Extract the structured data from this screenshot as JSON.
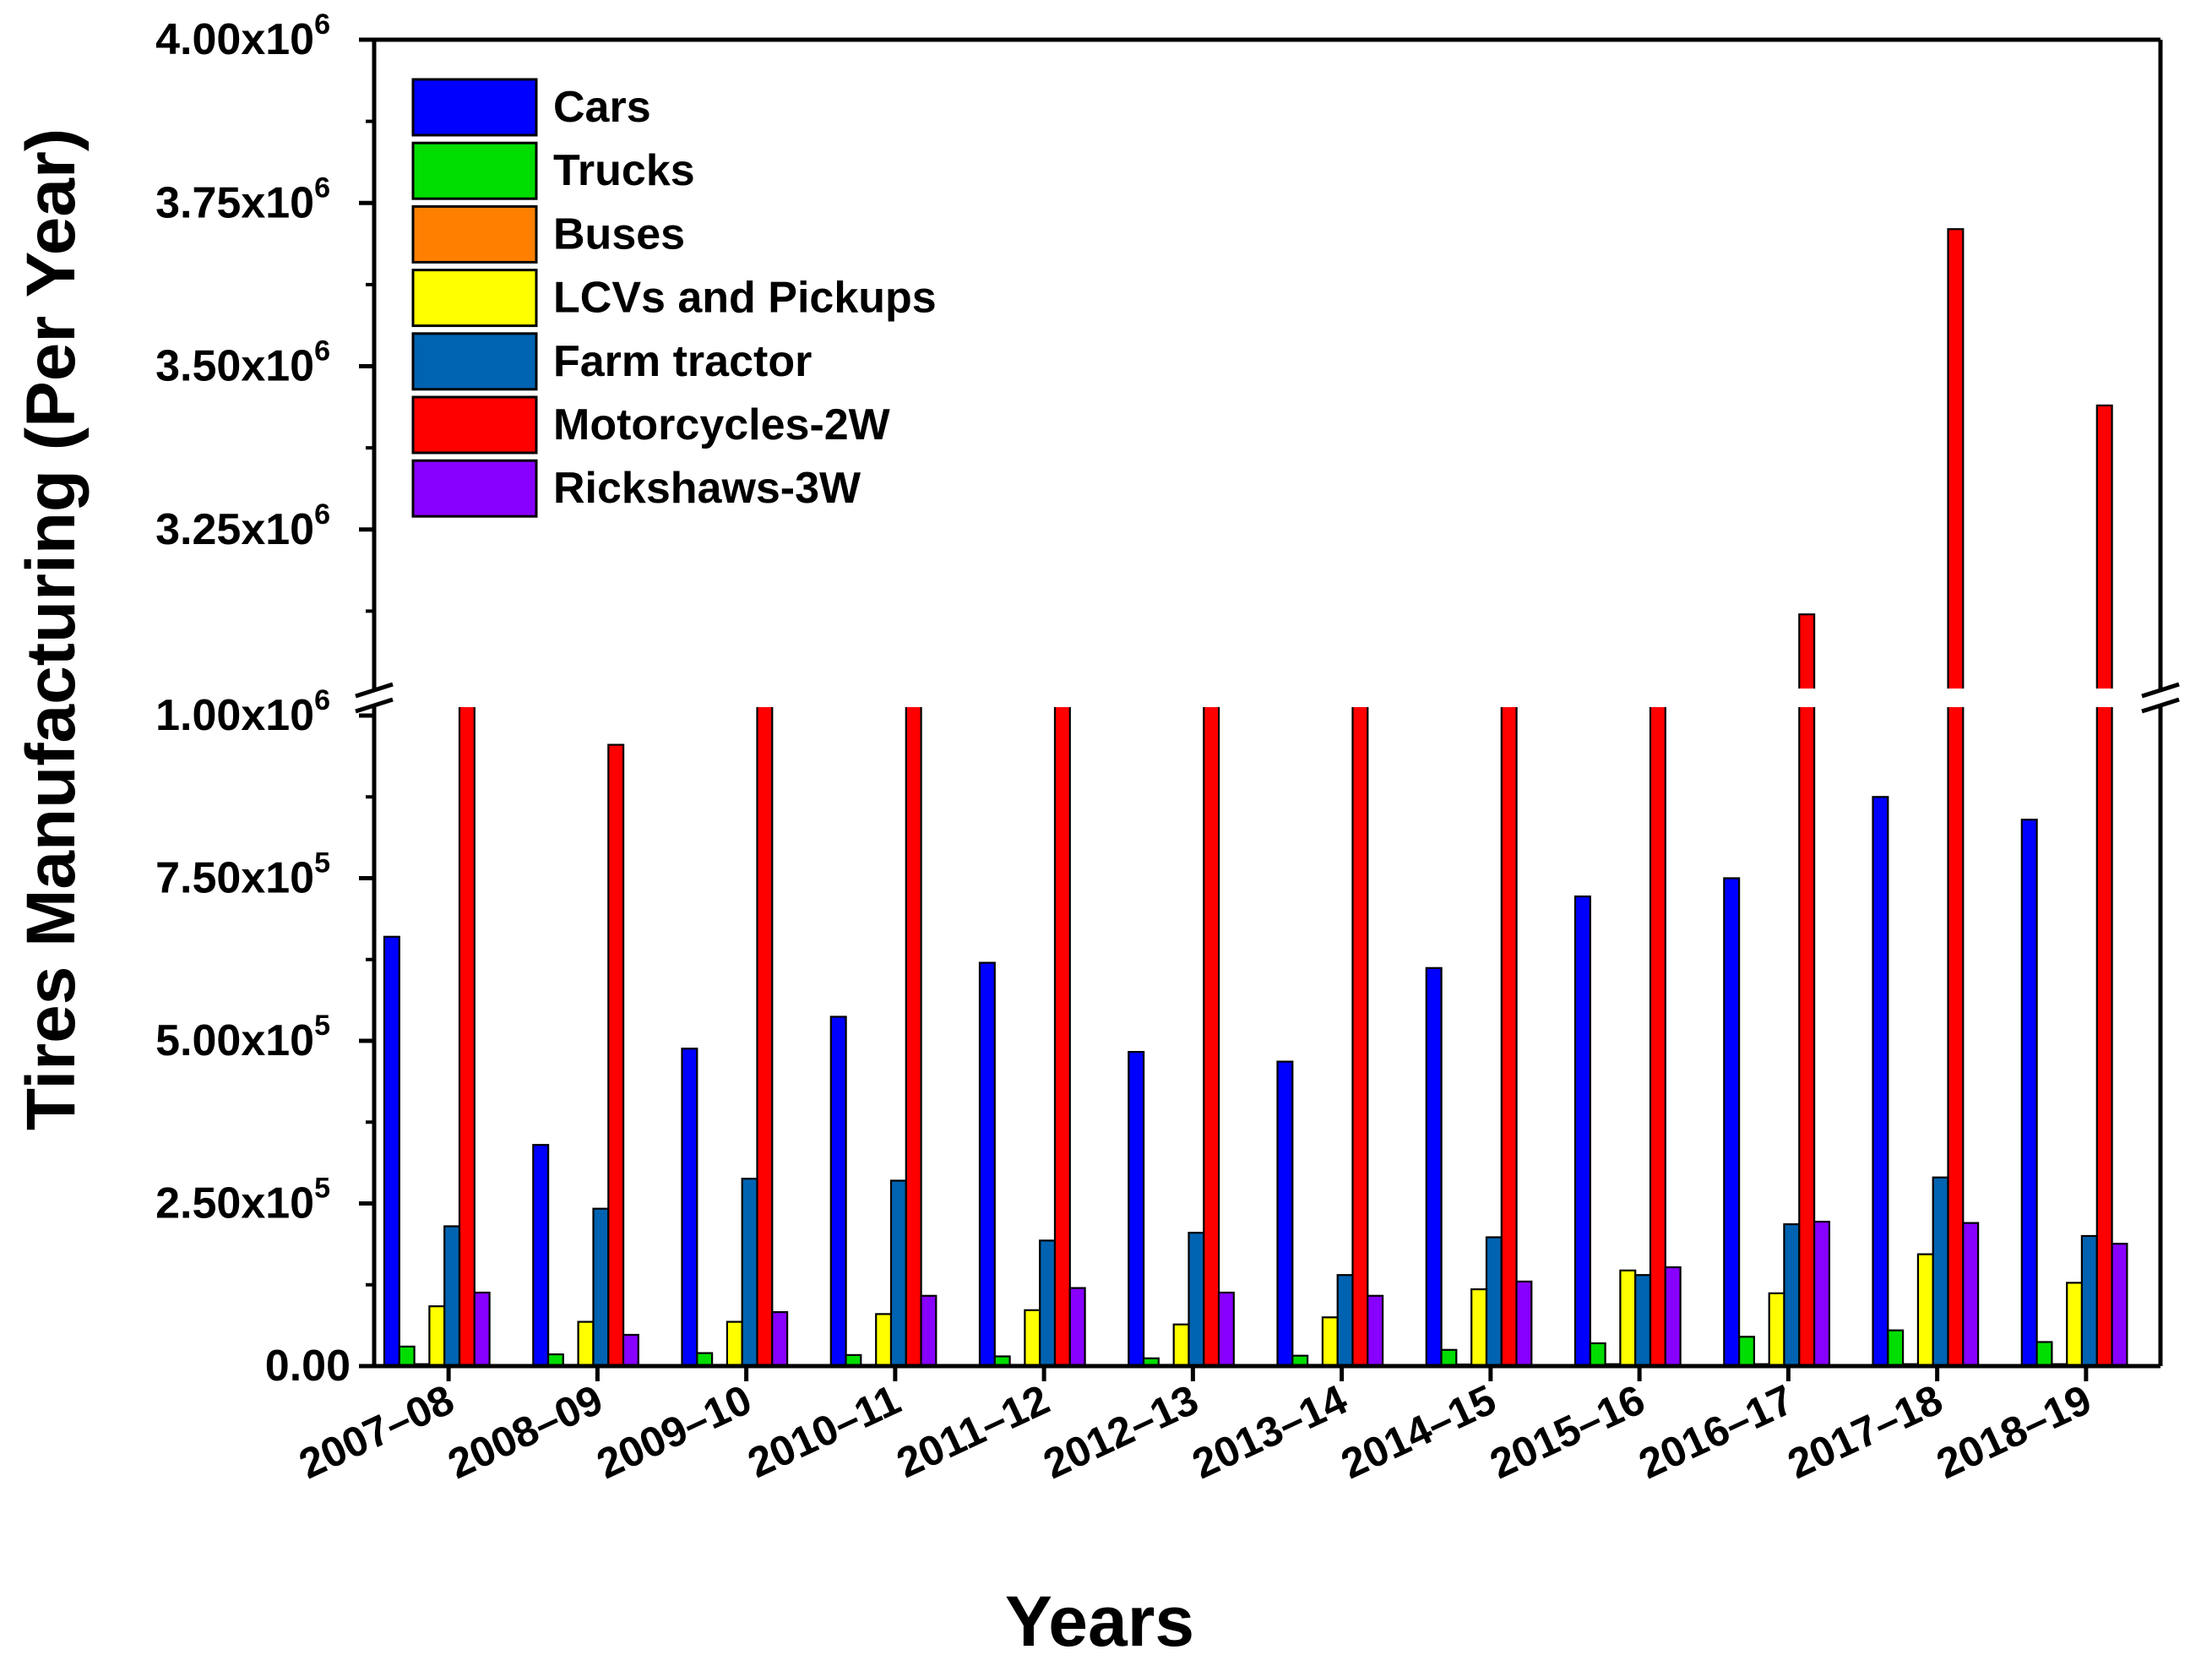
{
  "chart_data": {
    "type": "bar",
    "xlabel": "Years",
    "ylabel": "Tires Manufacturing (Per Year)",
    "axis_break": {
      "lower_range": [
        0,
        1000000
      ],
      "upper_range": [
        3000000,
        4000000
      ]
    },
    "y_ticks_lower": [
      {
        "value": 0,
        "mant": "0.00",
        "exp": ""
      },
      {
        "value": 250000,
        "mant": "2.50x10",
        "exp": "5"
      },
      {
        "value": 500000,
        "mant": "5.00x10",
        "exp": "5"
      },
      {
        "value": 750000,
        "mant": "7.50x10",
        "exp": "5"
      },
      {
        "value": 1000000,
        "mant": "1.00x10",
        "exp": "6"
      }
    ],
    "y_ticks_upper": [
      {
        "value": 3250000,
        "mant": "3.25x10",
        "exp": "6"
      },
      {
        "value": 3500000,
        "mant": "3.50x10",
        "exp": "6"
      },
      {
        "value": 3750000,
        "mant": "3.75x10",
        "exp": "6"
      },
      {
        "value": 4000000,
        "mant": "4.00x10",
        "exp": "6"
      }
    ],
    "categories": [
      "2007–08",
      "2008–09",
      "2009–10",
      "2010–11",
      "2011–12",
      "2012–13",
      "2013–14",
      "2014–15",
      "2015–16",
      "2016–17",
      "2017–18",
      "2018–19"
    ],
    "series": [
      {
        "name": "Cars",
        "color": "#0000ff",
        "values": [
          660000,
          340000,
          488000,
          537000,
          620000,
          483000,
          468000,
          612000,
          722000,
          750000,
          875000,
          840000
        ]
      },
      {
        "name": "Trucks",
        "color": "#00dd00",
        "values": [
          30000,
          18000,
          20000,
          17000,
          15000,
          12000,
          16000,
          25000,
          35000,
          45000,
          55000,
          37000
        ]
      },
      {
        "name": "Buses",
        "color": "#ff8000",
        "values": [
          3000,
          2000,
          2000,
          2000,
          2000,
          2000,
          2000,
          2500,
          3000,
          3000,
          3000,
          3000
        ]
      },
      {
        "name": "LCVs and Pickups",
        "color": "#ffff00",
        "values": [
          92000,
          68000,
          68000,
          80000,
          86000,
          64000,
          75000,
          118000,
          147000,
          112000,
          172000,
          128000
        ]
      },
      {
        "name": "Farm tractor",
        "color": "#0063b1",
        "values": [
          215000,
          242000,
          288000,
          285000,
          193000,
          205000,
          140000,
          198000,
          140000,
          218000,
          290000,
          200000
        ]
      },
      {
        "name": "Motorcycles-2W",
        "color": "#ff0000",
        "values": [
          1500000,
          955000,
          1500000,
          1500000,
          1500000,
          1500000,
          1500000,
          1500000,
          1500000,
          3120000,
          3710000,
          3440000
        ]
      },
      {
        "name": "Rickshaws-3W",
        "color": "#8800ff",
        "values": [
          113000,
          48000,
          83000,
          108000,
          120000,
          113000,
          108000,
          130000,
          152000,
          222000,
          220000,
          188000
        ]
      }
    ]
  }
}
